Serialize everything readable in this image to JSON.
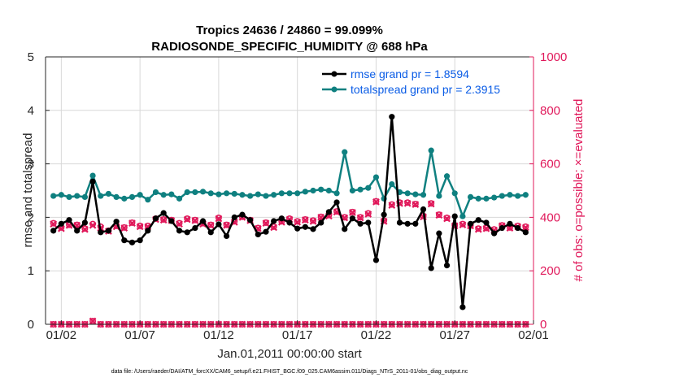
{
  "chart_data": {
    "type": "line",
    "title_line1": "Tropics 24636 / 24860 = 99.099%",
    "title_line2": "RADIOSONDE_SPECIFIC_HUMIDITY @ 688 hPa",
    "xlabel": "Jan.01,2011 00:00:00 start",
    "ylabel_left": "rmse and totalspread",
    "ylabel_right": "# of obs: o=possible; ×=evaluated",
    "footer": "data file: /Users/raeder/DAI/ATM_forcXX/CAM6_setup/f.e21.FHIST_BGC.f09_025.CAM6assim.011/Diags_NTrS_2011-01/obs_diag_output.nc",
    "x_ticks": [
      {
        "value": 2,
        "label": "01/02"
      },
      {
        "value": 7,
        "label": "01/07"
      },
      {
        "value": 12,
        "label": "01/12"
      },
      {
        "value": 17,
        "label": "01/17"
      },
      {
        "value": 22,
        "label": "01/22"
      },
      {
        "value": 27,
        "label": "01/27"
      },
      {
        "value": 32,
        "label": "02/01"
      }
    ],
    "xlim": [
      1,
      32
    ],
    "ylim_left": [
      0,
      5
    ],
    "y_ticks_left": [
      "0",
      "1",
      "2",
      "3",
      "4",
      "5"
    ],
    "ylim_right": [
      0,
      1000
    ],
    "y_ticks_right": [
      "0",
      "200",
      "400",
      "600",
      "800",
      "1000"
    ],
    "x": [
      1.5,
      2,
      2.5,
      3,
      3.5,
      4,
      4.5,
      5,
      5.5,
      6,
      6.5,
      7,
      7.5,
      8,
      8.5,
      9,
      9.5,
      10,
      10.5,
      11,
      11.5,
      12,
      12.5,
      13,
      13.5,
      14,
      14.5,
      15,
      15.5,
      16,
      16.5,
      17,
      17.5,
      18,
      18.5,
      19,
      19.5,
      20,
      20.5,
      21,
      21.5,
      22,
      22.5,
      23,
      23.5,
      24,
      24.5,
      25,
      25.5,
      26,
      26.5,
      27,
      27.5,
      28,
      28.5,
      29,
      29.5,
      30,
      30.5,
      31,
      31.5
    ],
    "series": [
      {
        "name": "rmse",
        "legend": "rmse grand pr = 1.8594",
        "color": "#000000",
        "axis": "left",
        "values": [
          1.75,
          1.88,
          1.95,
          1.75,
          1.9,
          2.67,
          1.72,
          1.75,
          1.92,
          1.57,
          1.53,
          1.57,
          1.75,
          1.98,
          2.08,
          1.93,
          1.75,
          1.72,
          1.8,
          1.93,
          1.72,
          1.87,
          1.65,
          2.0,
          2.05,
          1.95,
          1.68,
          1.73,
          1.93,
          1.98,
          1.9,
          1.79,
          1.82,
          1.78,
          1.9,
          2.1,
          2.28,
          1.78,
          1.98,
          1.88,
          1.9,
          1.2,
          2.05,
          3.88,
          1.9,
          1.88,
          1.88,
          2.15,
          1.05,
          1.7,
          1.1,
          2.02,
          0.32,
          1.88,
          1.95,
          1.9,
          1.7,
          1.8,
          1.88,
          1.8,
          1.72
        ]
      },
      {
        "name": "totalspread",
        "legend": "totalspread grand pr = 2.3915",
        "color": "#0f8080",
        "axis": "left",
        "values": [
          2.4,
          2.42,
          2.38,
          2.4,
          2.38,
          2.78,
          2.4,
          2.44,
          2.38,
          2.35,
          2.38,
          2.42,
          2.33,
          2.47,
          2.42,
          2.43,
          2.35,
          2.47,
          2.47,
          2.48,
          2.45,
          2.43,
          2.45,
          2.44,
          2.42,
          2.4,
          2.43,
          2.4,
          2.42,
          2.45,
          2.45,
          2.45,
          2.48,
          2.5,
          2.52,
          2.5,
          2.45,
          3.22,
          2.5,
          2.52,
          2.55,
          2.75,
          2.35,
          2.62,
          2.47,
          2.45,
          2.43,
          2.42,
          3.25,
          2.4,
          2.77,
          2.45,
          2.02,
          2.38,
          2.35,
          2.35,
          2.37,
          2.4,
          2.42,
          2.4,
          2.42
        ]
      },
      {
        "name": "possible",
        "color": "#e0185a",
        "axis": "right",
        "values": [
          378,
          362,
          372,
          372,
          358,
          375,
          365,
          350,
          368,
          362,
          380,
          368,
          368,
          395,
          392,
          390,
          378,
          395,
          390,
          378,
          372,
          398,
          372,
          385,
          402,
          390,
          360,
          380,
          365,
          385,
          395,
          385,
          392,
          388,
          402,
          408,
          422,
          400,
          420,
          400,
          415,
          460,
          388,
          448,
          455,
          455,
          450,
          405,
          452,
          410,
          398,
          370,
          375,
          370,
          358,
          360,
          355,
          370,
          362,
          368,
          365
        ]
      },
      {
        "name": "evaluated",
        "color": "#e0185a",
        "axis": "right",
        "values": [
          375,
          358,
          370,
          370,
          355,
          370,
          360,
          348,
          365,
          360,
          378,
          365,
          365,
          392,
          390,
          388,
          375,
          392,
          388,
          375,
          370,
          395,
          370,
          382,
          400,
          388,
          358,
          378,
          362,
          382,
          392,
          382,
          390,
          385,
          400,
          405,
          420,
          398,
          418,
          398,
          412,
          458,
          385,
          445,
          452,
          452,
          448,
          402,
          450,
          408,
          395,
          368,
          372,
          368,
          355,
          358,
          352,
          368,
          360,
          365,
          362
        ]
      },
      {
        "name": "possible_zero",
        "color": "#e0185a",
        "axis": "right",
        "values": [
          0,
          0,
          0,
          0,
          0,
          12,
          0,
          0,
          0,
          0,
          0,
          0,
          0,
          0,
          0,
          0,
          0,
          0,
          0,
          0,
          0,
          0,
          0,
          0,
          0,
          0,
          0,
          0,
          0,
          0,
          0,
          0,
          0,
          0,
          0,
          0,
          0,
          0,
          0,
          0,
          0,
          0,
          0,
          0,
          0,
          0,
          0,
          0,
          0,
          0,
          0,
          0,
          0,
          0,
          0,
          0,
          0,
          0,
          0,
          0,
          0
        ]
      }
    ]
  },
  "colors": {
    "rmse": "#000000",
    "spread": "#0f8080",
    "obs": "#e0185a",
    "legend_text": "#0a5ce6"
  }
}
